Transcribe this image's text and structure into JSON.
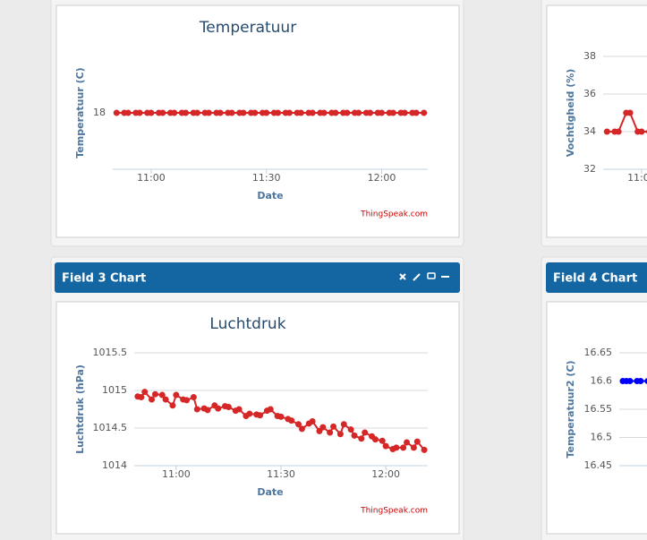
{
  "chart_data": [
    {
      "type": "line",
      "title": "Temperatuur",
      "y_label": "Temperatuur (C)",
      "x_label": "Date",
      "credit": "ThingSpeak.com",
      "x": [
        "10:51",
        "10:53",
        "10:54",
        "10:56",
        "10:57",
        "10:59",
        "11:00",
        "11:02",
        "11:03",
        "11:05",
        "11:06",
        "11:08",
        "11:09",
        "11:11",
        "11:12",
        "11:14",
        "11:15",
        "11:17",
        "11:18",
        "11:20",
        "11:21",
        "11:23",
        "11:24",
        "11:26",
        "11:27",
        "11:29",
        "11:30",
        "11:32",
        "11:33",
        "11:35",
        "11:36",
        "11:38",
        "11:39",
        "11:41",
        "11:42",
        "11:44",
        "11:45",
        "11:47",
        "11:48",
        "11:50",
        "11:51",
        "11:53",
        "11:54",
        "11:56",
        "11:57",
        "11:59",
        "12:00",
        "12:02",
        "12:03",
        "12:05",
        "12:06",
        "12:08",
        "12:09",
        "12:11"
      ],
      "xlim": [
        "10:50",
        "12:12"
      ],
      "xticks": [
        "11:00",
        "11:30",
        "12:00"
      ],
      "series": [
        {
          "color": "#d62728",
          "values": [
            18,
            18,
            18,
            18,
            18,
            18,
            18,
            18,
            18,
            18,
            18,
            18,
            18,
            18,
            18,
            18,
            18,
            18,
            18,
            18,
            18,
            18,
            18,
            18,
            18,
            18,
            18,
            18,
            18,
            18,
            18,
            18,
            18,
            18,
            18,
            18,
            18,
            18,
            18,
            18,
            18,
            18,
            18,
            18,
            18,
            18,
            18,
            18,
            18,
            18,
            18,
            18,
            18,
            18
          ]
        }
      ],
      "ylim": [
        17.5,
        18.5
      ],
      "yticks": [
        18
      ],
      "grid": true
    },
    {
      "type": "line",
      "y_label": "Vochtigheid (%)",
      "x": [
        "10:51",
        "10:53",
        "10:54",
        "10:56",
        "10:57",
        "10:59",
        "11:00",
        "11:02"
      ],
      "xlim": [
        "10:50",
        "12:12"
      ],
      "xticks": [
        "11:00"
      ],
      "series": [
        {
          "color": "#d62728",
          "values": [
            34,
            34,
            34,
            35,
            35,
            34,
            34,
            34
          ]
        }
      ],
      "ylim": [
        32,
        38
      ],
      "yticks": [
        32,
        34,
        36,
        38
      ],
      "grid": true
    },
    {
      "type": "line",
      "panel_title": "Field 3 Chart",
      "title": "Luchtdruk",
      "y_label": "Luchtdruk (hPa)",
      "x_label": "Date",
      "credit": "ThingSpeak.com",
      "x": [
        "10:49",
        "10:50",
        "10:51",
        "10:53",
        "10:54",
        "10:56",
        "10:57",
        "10:59",
        "11:00",
        "11:02",
        "11:03",
        "11:05",
        "11:06",
        "11:08",
        "11:09",
        "11:11",
        "11:12",
        "11:14",
        "11:15",
        "11:17",
        "11:18",
        "11:20",
        "11:21",
        "11:23",
        "11:24",
        "11:26",
        "11:27",
        "11:29",
        "11:30",
        "11:32",
        "11:33",
        "11:35",
        "11:36",
        "11:38",
        "11:39",
        "11:41",
        "11:42",
        "11:44",
        "11:45",
        "11:47",
        "11:48",
        "11:50",
        "11:51",
        "11:53",
        "11:54",
        "11:56",
        "11:57",
        "11:59",
        "12:00",
        "12:02",
        "12:03",
        "12:05",
        "12:06",
        "12:08",
        "12:09",
        "12:11"
      ],
      "xlim": [
        "10:48",
        "12:12"
      ],
      "xticks": [
        "11:00",
        "11:30",
        "12:00"
      ],
      "series": [
        {
          "color": "#d62728",
          "values": [
            1014.92,
            1014.91,
            1014.98,
            1014.88,
            1014.95,
            1014.94,
            1014.88,
            1014.8,
            1014.94,
            1014.88,
            1014.87,
            1014.91,
            1014.75,
            1014.76,
            1014.74,
            1014.8,
            1014.76,
            1014.79,
            1014.78,
            1014.73,
            1014.75,
            1014.66,
            1014.69,
            1014.68,
            1014.67,
            1014.73,
            1014.75,
            1014.66,
            1014.65,
            1014.62,
            1014.6,
            1014.55,
            1014.49,
            1014.56,
            1014.59,
            1014.46,
            1014.51,
            1014.44,
            1014.52,
            1014.42,
            1014.55,
            1014.48,
            1014.4,
            1014.36,
            1014.44,
            1014.39,
            1014.35,
            1014.33,
            1014.26,
            1014.22,
            1014.24,
            1014.24,
            1014.31,
            1014.24,
            1014.32,
            1014.21
          ]
        }
      ],
      "ylim": [
        1014,
        1015.5
      ],
      "yticks": [
        1014,
        1014.5,
        1015,
        1015.5
      ],
      "grid": true
    },
    {
      "type": "line",
      "panel_title": "Field 4 Chart",
      "y_label": "Temperatuur2 (C)",
      "x": [
        "10:49",
        "10:50",
        "10:51",
        "10:53",
        "10:54",
        "10:56"
      ],
      "xlim": [
        "10:48",
        "12:12"
      ],
      "series": [
        {
          "color": "#0000ff",
          "values": [
            16.6,
            16.6,
            16.6,
            16.6,
            16.6,
            16.6
          ]
        }
      ],
      "ylim": [
        16.45,
        16.65
      ],
      "yticks": [
        16.45,
        16.5,
        16.55,
        16.6,
        16.65
      ],
      "grid": true
    }
  ]
}
